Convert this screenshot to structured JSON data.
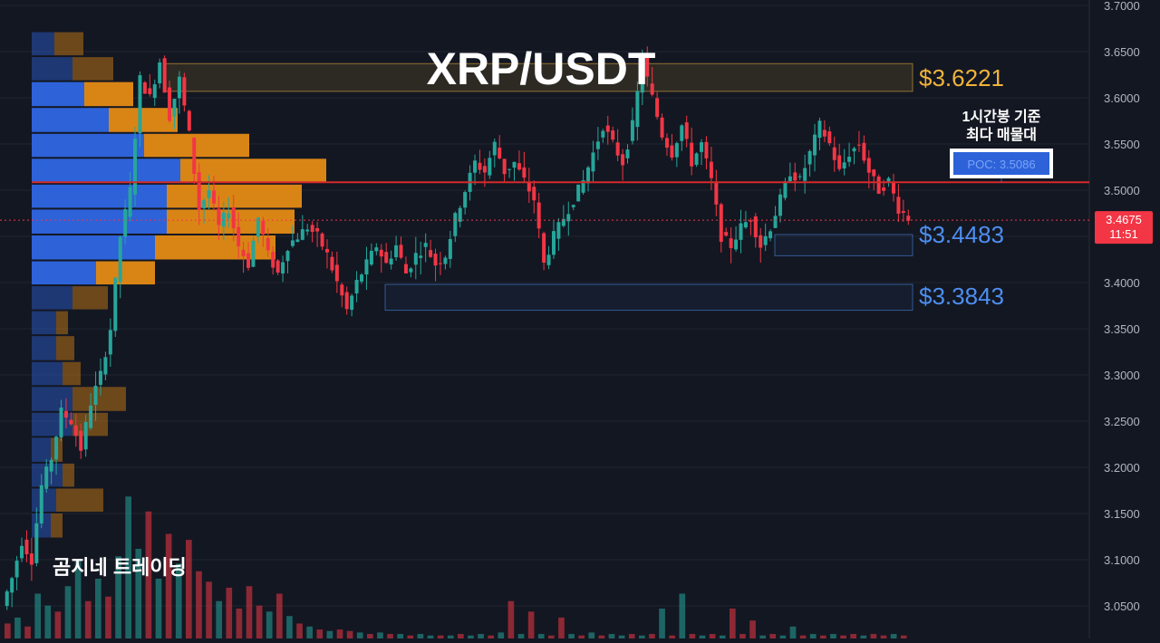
{
  "chart_data": {
    "type": "candlestick",
    "title": "XRP/USDT",
    "watermark": "곰지네 트레이딩",
    "y_ticks": [
      "3.7000",
      "3.6500",
      "3.6000",
      "3.5500",
      "3.5000",
      "3.4500",
      "3.4000",
      "3.3500",
      "3.3000",
      "3.2500",
      "3.2000",
      "3.1500",
      "3.1000",
      "3.0500"
    ],
    "ylim": [
      3.0,
      3.7
    ],
    "last_price": {
      "value": "3.4675",
      "countdown": "11:51",
      "price": 3.4675,
      "color": "#f23645"
    },
    "poc": {
      "price": 3.5086,
      "label": "POC: 3.5086",
      "note_line1": "1시간봉 기준",
      "note_line2": "최다 매물대"
    },
    "levels": [
      {
        "label": "$3.6221",
        "top": 3.637,
        "bottom": 3.607,
        "color": "#f0b33a"
      },
      {
        "label": "$3.4483",
        "top": 3.452,
        "bottom": 3.429,
        "color": "#4d8ef0"
      },
      {
        "label": "$3.3843",
        "top": 3.398,
        "bottom": 3.37,
        "color": "#4d8ef0"
      }
    ],
    "volume_profile_rows": [
      {
        "low": 3.645,
        "high": 3.672,
        "buy": 0.25,
        "sell": 0.32
      },
      {
        "low": 3.618,
        "high": 3.645,
        "buy": 0.45,
        "sell": 0.45
      },
      {
        "low": 3.59,
        "high": 3.618,
        "buy": 0.58,
        "sell": 0.54
      },
      {
        "low": 3.562,
        "high": 3.59,
        "buy": 0.85,
        "sell": 0.76
      },
      {
        "low": 3.535,
        "high": 3.562,
        "buy": 1.24,
        "sell": 1.16
      },
      {
        "low": 3.507,
        "high": 3.535,
        "buy": 1.64,
        "sell": 1.61
      },
      {
        "low": 3.48,
        "high": 3.507,
        "buy": 1.49,
        "sell": 1.49
      },
      {
        "low": 3.452,
        "high": 3.48,
        "buy": 1.49,
        "sell": 1.41
      },
      {
        "low": 3.424,
        "high": 3.452,
        "buy": 1.36,
        "sell": 1.33
      },
      {
        "low": 3.397,
        "high": 3.424,
        "buy": 0.71,
        "sell": 0.65
      },
      {
        "low": 3.37,
        "high": 3.397,
        "buy": 0.45,
        "sell": 0.39
      },
      {
        "low": 3.343,
        "high": 3.37,
        "buy": 0.27,
        "sell": 0.13
      },
      {
        "low": 3.315,
        "high": 3.343,
        "buy": 0.27,
        "sell": 0.2
      },
      {
        "low": 3.288,
        "high": 3.315,
        "buy": 0.34,
        "sell": 0.2
      },
      {
        "low": 3.26,
        "high": 3.288,
        "buy": 0.45,
        "sell": 0.59
      },
      {
        "low": 3.233,
        "high": 3.26,
        "buy": 0.45,
        "sell": 0.39
      },
      {
        "low": 3.205,
        "high": 3.233,
        "buy": 0.21,
        "sell": 0.13
      },
      {
        "low": 3.178,
        "high": 3.205,
        "buy": 0.34,
        "sell": 0.13
      },
      {
        "low": 3.151,
        "high": 3.178,
        "buy": 0.27,
        "sell": 0.52
      },
      {
        "low": 3.123,
        "high": 3.151,
        "buy": 0.21,
        "sell": 0.13
      }
    ],
    "candle_path": [
      3.05,
      3.08,
      3.12,
      3.1,
      3.18,
      3.21,
      3.26,
      3.25,
      3.22,
      3.27,
      3.3,
      3.35,
      3.45,
      3.5,
      3.62,
      3.6,
      3.64,
      3.58,
      3.62,
      3.56,
      3.48,
      3.5,
      3.46,
      3.48,
      3.44,
      3.42,
      3.47,
      3.43,
      3.41,
      3.44,
      3.45,
      3.46,
      3.45,
      3.43,
      3.4,
      3.37,
      3.4,
      3.42,
      3.44,
      3.42,
      3.44,
      3.41,
      3.43,
      3.44,
      3.42,
      3.43,
      3.47,
      3.5,
      3.53,
      3.52,
      3.55,
      3.52,
      3.53,
      3.51,
      3.49,
      3.42,
      3.45,
      3.47,
      3.49,
      3.51,
      3.54,
      3.57,
      3.55,
      3.53,
      3.57,
      3.64,
      3.6,
      3.56,
      3.54,
      3.57,
      3.53,
      3.55,
      3.51,
      3.45,
      3.44,
      3.46,
      3.47,
      3.44,
      3.46,
      3.49,
      3.52,
      3.51,
      3.54,
      3.57,
      3.55,
      3.52,
      3.54,
      3.55,
      3.52,
      3.5,
      3.51,
      3.48,
      3.47
    ],
    "volume_bars": [
      {
        "v": 0.1,
        "up": false
      },
      {
        "v": 0.14,
        "up": true
      },
      {
        "v": 0.08,
        "up": false
      },
      {
        "v": 0.3,
        "up": true
      },
      {
        "v": 0.22,
        "up": true
      },
      {
        "v": 0.18,
        "up": false
      },
      {
        "v": 0.35,
        "up": true
      },
      {
        "v": 0.52,
        "up": true
      },
      {
        "v": 0.25,
        "up": false
      },
      {
        "v": 0.4,
        "up": true
      },
      {
        "v": 0.28,
        "up": false
      },
      {
        "v": 0.55,
        "up": true
      },
      {
        "v": 0.95,
        "up": true
      },
      {
        "v": 0.6,
        "up": true
      },
      {
        "v": 0.85,
        "up": false
      },
      {
        "v": 0.4,
        "up": true
      },
      {
        "v": 0.7,
        "up": false
      },
      {
        "v": 0.5,
        "up": true
      },
      {
        "v": 0.66,
        "up": false
      },
      {
        "v": 0.45,
        "up": false
      },
      {
        "v": 0.38,
        "up": false
      },
      {
        "v": 0.25,
        "up": true
      },
      {
        "v": 0.34,
        "up": false
      },
      {
        "v": 0.2,
        "up": false
      },
      {
        "v": 0.35,
        "up": false
      },
      {
        "v": 0.22,
        "up": false
      },
      {
        "v": 0.18,
        "up": true
      },
      {
        "v": 0.3,
        "up": false
      },
      {
        "v": 0.15,
        "up": true
      },
      {
        "v": 0.1,
        "up": false
      },
      {
        "v": 0.08,
        "up": true
      },
      {
        "v": 0.06,
        "up": false
      },
      {
        "v": 0.05,
        "up": true
      },
      {
        "v": 0.06,
        "up": false
      },
      {
        "v": 0.05,
        "up": false
      },
      {
        "v": 0.04,
        "up": true
      },
      {
        "v": 0.03,
        "up": false
      },
      {
        "v": 0.04,
        "up": true
      },
      {
        "v": 0.03,
        "up": false
      },
      {
        "v": 0.03,
        "up": true
      },
      {
        "v": 0.02,
        "up": false
      },
      {
        "v": 0.03,
        "up": true
      },
      {
        "v": 0.02,
        "up": true
      },
      {
        "v": 0.02,
        "up": false
      },
      {
        "v": 0.02,
        "up": true
      },
      {
        "v": 0.03,
        "up": false
      },
      {
        "v": 0.02,
        "up": true
      },
      {
        "v": 0.03,
        "up": true
      },
      {
        "v": 0.02,
        "up": false
      },
      {
        "v": 0.04,
        "up": true
      },
      {
        "v": 0.25,
        "up": false
      },
      {
        "v": 0.03,
        "up": true
      },
      {
        "v": 0.18,
        "up": false
      },
      {
        "v": 0.03,
        "up": true
      },
      {
        "v": 0.02,
        "up": false
      },
      {
        "v": 0.14,
        "up": false
      },
      {
        "v": 0.03,
        "up": true
      },
      {
        "v": 0.02,
        "up": false
      },
      {
        "v": 0.04,
        "up": true
      },
      {
        "v": 0.02,
        "up": false
      },
      {
        "v": 0.03,
        "up": true
      },
      {
        "v": 0.02,
        "up": true
      },
      {
        "v": 0.03,
        "up": false
      },
      {
        "v": 0.02,
        "up": true
      },
      {
        "v": 0.03,
        "up": false
      },
      {
        "v": 0.2,
        "up": true
      },
      {
        "v": 0.02,
        "up": false
      },
      {
        "v": 0.3,
        "up": true
      },
      {
        "v": 0.03,
        "up": false
      },
      {
        "v": 0.02,
        "up": true
      },
      {
        "v": 0.03,
        "up": false
      },
      {
        "v": 0.02,
        "up": true
      },
      {
        "v": 0.2,
        "up": false
      },
      {
        "v": 0.03,
        "up": false
      },
      {
        "v": 0.12,
        "up": false
      },
      {
        "v": 0.02,
        "up": true
      },
      {
        "v": 0.03,
        "up": false
      },
      {
        "v": 0.02,
        "up": true
      },
      {
        "v": 0.08,
        "up": true
      },
      {
        "v": 0.02,
        "up": false
      },
      {
        "v": 0.03,
        "up": true
      },
      {
        "v": 0.02,
        "up": false
      },
      {
        "v": 0.03,
        "up": true
      },
      {
        "v": 0.02,
        "up": false
      },
      {
        "v": 0.03,
        "up": false
      },
      {
        "v": 0.02,
        "up": true
      },
      {
        "v": 0.03,
        "up": false
      },
      {
        "v": 0.02,
        "up": false
      },
      {
        "v": 0.03,
        "up": true
      },
      {
        "v": 0.02,
        "up": false
      }
    ],
    "colors": {
      "up": "#26a69a",
      "down": "#f23645",
      "vp_buy": "#2d62d9",
      "vp_sell": "#d98515",
      "poc_line": "#d42a2a",
      "price_line": "#f23645",
      "background": "#131722",
      "grid": "#1f2430"
    }
  }
}
